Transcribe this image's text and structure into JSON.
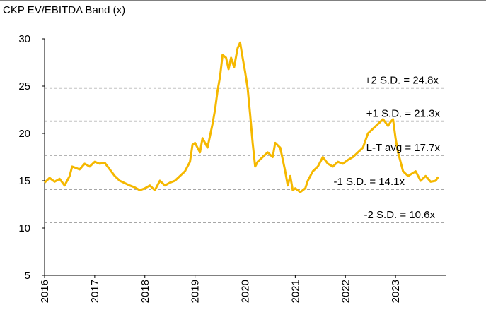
{
  "chart_data": {
    "type": "line",
    "title": "CKP EV/EBITDA  Band (x)",
    "x": [
      2016.0,
      2016.1,
      2016.2,
      2016.3,
      2016.4,
      2016.5,
      2016.55,
      2016.7,
      2016.8,
      2016.9,
      2017.0,
      2017.1,
      2017.2,
      2017.3,
      2017.4,
      2017.5,
      2017.7,
      2017.8,
      2017.9,
      2018.0,
      2018.1,
      2018.2,
      2018.3,
      2018.4,
      2018.5,
      2018.6,
      2018.7,
      2018.8,
      2018.9,
      2018.95,
      2019.0,
      2019.1,
      2019.15,
      2019.25,
      2019.35,
      2019.4,
      2019.45,
      2019.5,
      2019.55,
      2019.62,
      2019.67,
      2019.72,
      2019.78,
      2019.85,
      2019.9,
      2019.95,
      2020.0,
      2020.05,
      2020.1,
      2020.15,
      2020.2,
      2020.25,
      2020.35,
      2020.45,
      2020.55,
      2020.6,
      2020.7,
      2020.8,
      2020.85,
      2020.9,
      2020.95,
      2021.0,
      2021.1,
      2021.2,
      2021.25,
      2021.3,
      2021.35,
      2021.45,
      2021.55,
      2021.65,
      2021.75,
      2021.85,
      2021.95,
      2022.05,
      2022.15,
      2022.25,
      2022.35,
      2022.45,
      2022.55,
      2022.65,
      2022.75,
      2022.85,
      2022.9,
      2022.95,
      2023.0,
      2023.05,
      2023.1,
      2023.15,
      2023.25,
      2023.4,
      2023.5,
      2023.6,
      2023.7,
      2023.8,
      2023.85
    ],
    "series": [
      {
        "color": "#f5b800",
        "values": [
          14.8,
          15.3,
          14.9,
          15.2,
          14.5,
          15.5,
          16.5,
          16.2,
          16.8,
          16.5,
          17.0,
          16.8,
          16.9,
          16.2,
          15.5,
          15.0,
          14.5,
          14.3,
          14.0,
          14.2,
          14.5,
          14.0,
          15.0,
          14.5,
          14.8,
          15.0,
          15.5,
          16.0,
          17.0,
          18.8,
          19.0,
          18.0,
          19.5,
          18.5,
          21.0,
          22.5,
          24.5,
          26.0,
          28.3,
          28.0,
          26.8,
          28.0,
          27.0,
          29.0,
          29.6,
          28.0,
          26.5,
          24.8,
          22.0,
          19.0,
          16.5,
          17.0,
          17.5,
          18.0,
          17.5,
          19.0,
          18.5,
          16.0,
          14.5,
          15.5,
          14.0,
          14.2,
          13.8,
          14.2,
          15.0,
          15.5,
          16.0,
          16.5,
          17.5,
          16.8,
          16.5,
          17.0,
          16.8,
          17.2,
          17.5,
          18.0,
          18.5,
          20.0,
          20.5,
          21.0,
          21.5,
          20.8,
          21.2,
          21.5,
          19.5,
          18.0,
          17.0,
          16.0,
          15.5,
          16.0,
          15.0,
          15.5,
          14.9,
          15.0,
          15.4
        ]
      }
    ],
    "bands": [
      {
        "label": "+2 S.D. = 24.8x",
        "value": 24.8
      },
      {
        "label": "+1 S.D. = 21.3x",
        "value": 21.3
      },
      {
        "label": "L-T avg = 17.7x",
        "value": 17.7
      },
      {
        "label": "-1 S.D. = 14.1x",
        "value": 14.1
      },
      {
        "label": "-2 S.D. = 10.6x",
        "value": 10.6
      }
    ],
    "band_color": "#888888",
    "xlim": [
      2016,
      2024
    ],
    "xticks": [
      2016,
      2017,
      2018,
      2019,
      2020,
      2021,
      2022,
      2023
    ],
    "ylim": [
      5,
      30
    ],
    "yticks": [
      5,
      10,
      15,
      20,
      25,
      30
    ]
  }
}
